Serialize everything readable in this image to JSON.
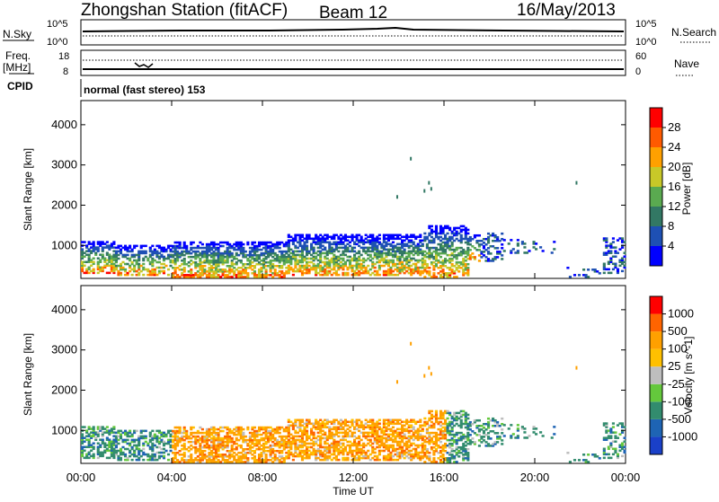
{
  "header": {
    "station": "Zhongshan Station (fitACF)",
    "beam": "Beam 12",
    "date": "16/May/2013",
    "cpid_value": "normal (fast stereo) 153"
  },
  "small_panels": {
    "nsky_label": "N.Sky",
    "nsearch_label": "N.Search",
    "freq_label": "Freq.",
    "freq_unit": "[MHz]",
    "nave_label": "Nave",
    "cpid_label": "CPID",
    "left_ticks_top": [
      "10^5",
      "10^0"
    ],
    "right_ticks_top": [
      "10^5",
      "10^0"
    ],
    "left_ticks_freq": [
      "18",
      "8"
    ],
    "right_ticks_nave": [
      "60",
      "0"
    ]
  },
  "chart_data": [
    {
      "type": "heatmap",
      "name": "power",
      "ylabel": "Slant Range [km]",
      "xlabel": "Time UT",
      "x_ticks": [
        "00:00",
        "04:00",
        "08:00",
        "12:00",
        "16:00",
        "20:00",
        "00:00"
      ],
      "x_range_hours": [
        0,
        24
      ],
      "y_ticks": [
        1000,
        2000,
        3000,
        4000
      ],
      "y_range_km": [
        180,
        4600
      ],
      "colorbar": {
        "label": "Power [dB]",
        "ticks": [
          "4",
          "8",
          "12",
          "16",
          "20",
          "24",
          "28"
        ],
        "colors": [
          "#0000ff",
          "#1e50b4",
          "#327864",
          "#5aaa50",
          "#c8c828",
          "#ffa000",
          "#ff5a00",
          "#ff0000"
        ]
      }
    },
    {
      "type": "heatmap",
      "name": "velocity",
      "ylabel": "Slant Range [km]",
      "xlabel": "Time UT",
      "x_ticks": [
        "00:00",
        "04:00",
        "08:00",
        "12:00",
        "16:00",
        "20:00",
        "00:00"
      ],
      "x_range_hours": [
        0,
        24
      ],
      "y_ticks": [
        1000,
        2000,
        3000,
        4000
      ],
      "y_range_km": [
        180,
        4600
      ],
      "colorbar": {
        "label": "Velocity [m s^-1]",
        "ticks": [
          "1000",
          "500",
          "100",
          "25",
          "-25",
          "-100",
          "-500",
          "-1000"
        ],
        "colors": [
          "#1a40c8",
          "#1e64b4",
          "#328c6e",
          "#64c83c",
          "#bebebe",
          "#ffc000",
          "#ffa000",
          "#ff6400",
          "#ff0000"
        ]
      }
    }
  ]
}
